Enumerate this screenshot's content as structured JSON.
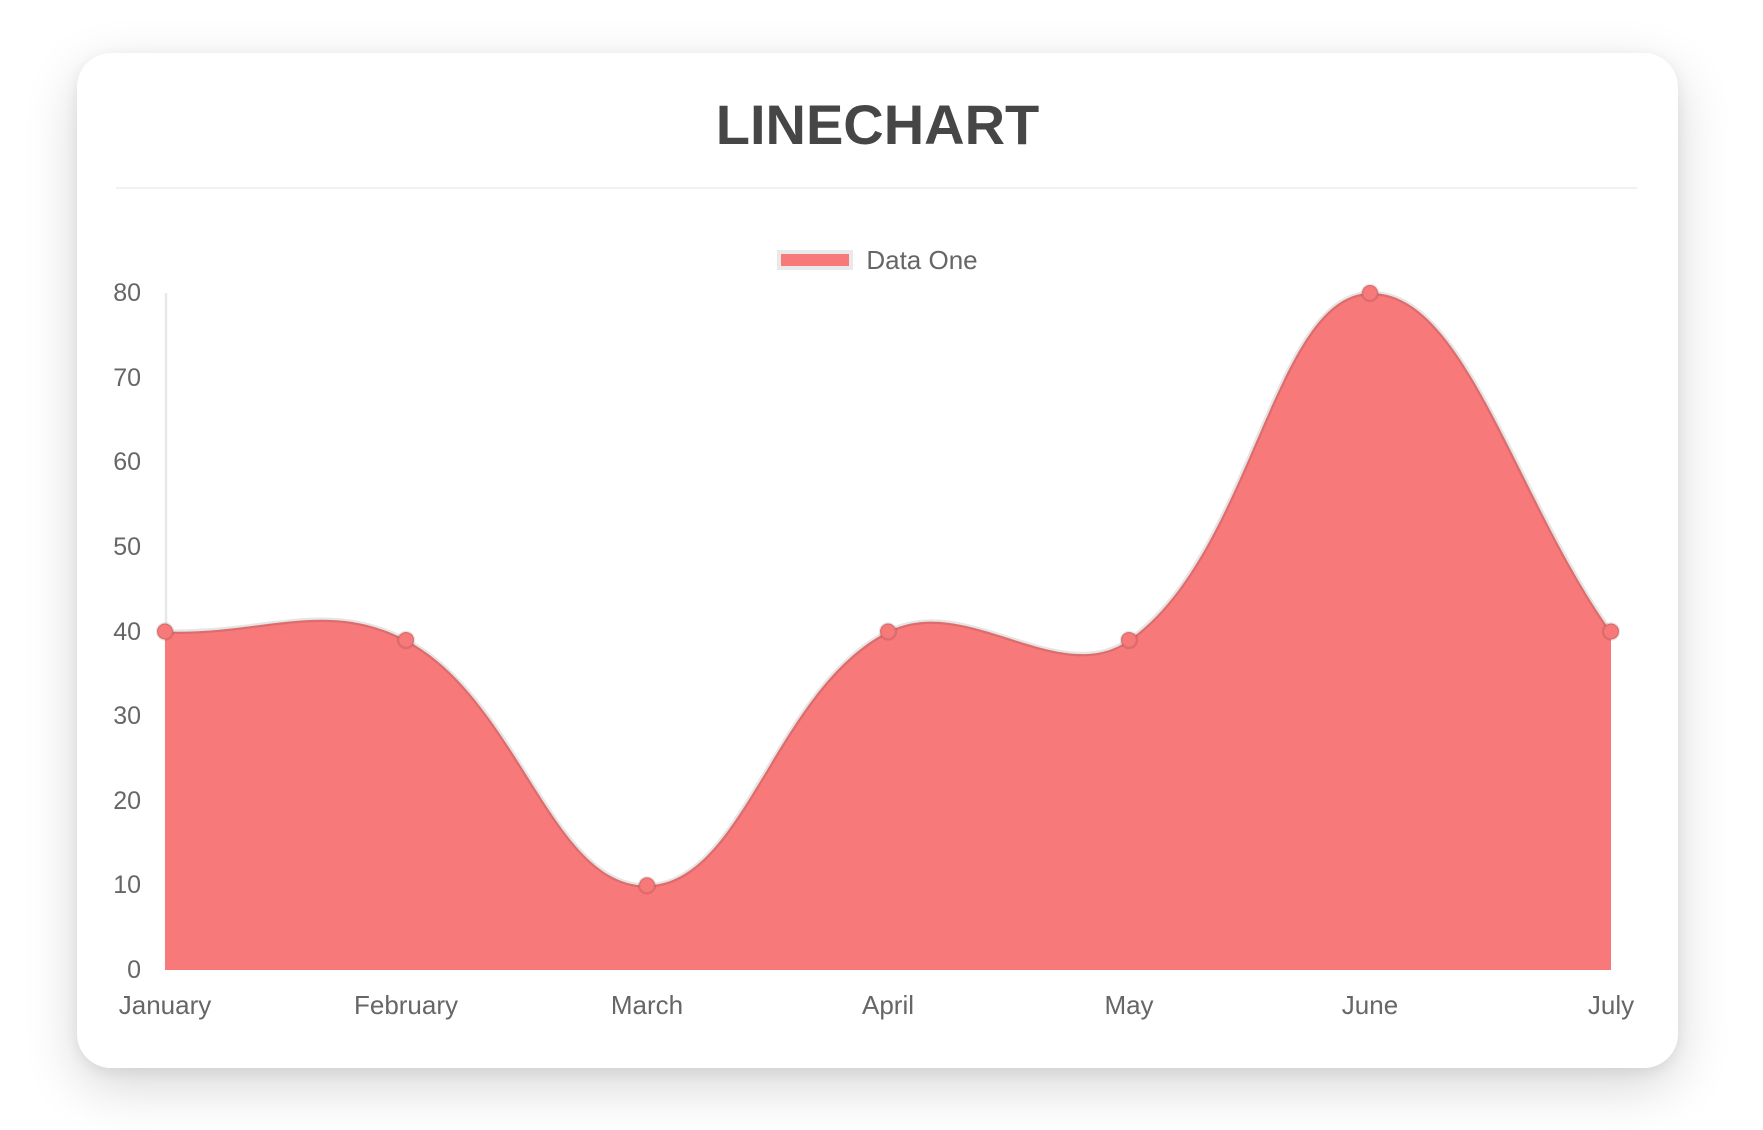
{
  "card": {
    "title": "LINECHART"
  },
  "legend": {
    "items": [
      {
        "label": "Data One",
        "color": "#f87979"
      }
    ]
  },
  "chart_data": {
    "type": "area",
    "title": "LINECHART",
    "categories": [
      "January",
      "February",
      "March",
      "April",
      "May",
      "June",
      "July"
    ],
    "series": [
      {
        "name": "Data One",
        "values": [
          40,
          39,
          10,
          40,
          39,
          80,
          40
        ]
      }
    ],
    "ylim": [
      0,
      80
    ],
    "y_ticks": [
      0,
      10,
      20,
      30,
      40,
      50,
      60,
      70,
      80
    ],
    "grid": false,
    "legend_position": "top",
    "colors": {
      "fill": "#f87979",
      "line": "rgba(0,0,0,0.10)",
      "axis_line": "rgba(0,0,0,0.09)",
      "tick_text": "#666666",
      "title_text": "#464646"
    },
    "bezier_tension": 0.4,
    "point_radius": 8
  }
}
